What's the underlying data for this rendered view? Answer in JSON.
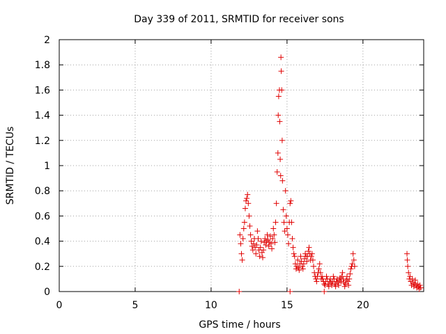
{
  "chart_data": {
    "type": "scatter",
    "title": "Day 339 of 2011, SRMTID for receiver sons",
    "xlabel": "GPS time / hours",
    "ylabel": "SRMTID / TECUs",
    "xlim": [
      0,
      24
    ],
    "ylim": [
      0,
      2
    ],
    "xticks": [
      0,
      5,
      10,
      15,
      20
    ],
    "yticks": [
      0,
      0.2,
      0.4,
      0.6,
      0.8,
      1,
      1.2,
      1.4,
      1.6,
      1.8,
      2
    ],
    "ytick_labels": [
      "0",
      "0.2",
      "0.4",
      "0.6",
      "0.8",
      "1",
      "1.2",
      "1.4",
      "1.6",
      "1.8",
      "2"
    ],
    "grid": true,
    "marker": "+",
    "color": "#e00000",
    "series": [
      {
        "name": "SRMTID",
        "points": [
          [
            11.85,
            0.0
          ],
          [
            15.2,
            0.0
          ],
          [
            17.45,
            0.0
          ],
          [
            11.9,
            0.45
          ],
          [
            11.95,
            0.38
          ],
          [
            12.0,
            0.3
          ],
          [
            12.05,
            0.25
          ],
          [
            12.1,
            0.42
          ],
          [
            12.15,
            0.5
          ],
          [
            12.2,
            0.55
          ],
          [
            12.25,
            0.66
          ],
          [
            12.3,
            0.72
          ],
          [
            12.35,
            0.74
          ],
          [
            12.4,
            0.77
          ],
          [
            12.45,
            0.7
          ],
          [
            12.5,
            0.6
          ],
          [
            12.55,
            0.52
          ],
          [
            12.6,
            0.45
          ],
          [
            12.65,
            0.4
          ],
          [
            12.7,
            0.36
          ],
          [
            12.75,
            0.33
          ],
          [
            12.8,
            0.38
          ],
          [
            12.85,
            0.42
          ],
          [
            12.9,
            0.35
          ],
          [
            12.95,
            0.3
          ],
          [
            13.0,
            0.37
          ],
          [
            13.05,
            0.48
          ],
          [
            13.1,
            0.42
          ],
          [
            13.15,
            0.33
          ],
          [
            13.2,
            0.28
          ],
          [
            13.25,
            0.35
          ],
          [
            13.3,
            0.4
          ],
          [
            13.35,
            0.31
          ],
          [
            13.4,
            0.27
          ],
          [
            13.45,
            0.33
          ],
          [
            13.5,
            0.39
          ],
          [
            13.55,
            0.42
          ],
          [
            13.6,
            0.37
          ],
          [
            13.65,
            0.4
          ],
          [
            13.7,
            0.45
          ],
          [
            13.75,
            0.41
          ],
          [
            13.8,
            0.36
          ],
          [
            13.85,
            0.39
          ],
          [
            13.9,
            0.44
          ],
          [
            13.95,
            0.38
          ],
          [
            14.0,
            0.34
          ],
          [
            14.05,
            0.42
          ],
          [
            14.1,
            0.5
          ],
          [
            14.15,
            0.45
          ],
          [
            14.2,
            0.39
          ],
          [
            14.25,
            0.55
          ],
          [
            14.3,
            0.7
          ],
          [
            14.35,
            0.95
          ],
          [
            14.4,
            1.1
          ],
          [
            14.42,
            1.4
          ],
          [
            14.45,
            1.55
          ],
          [
            14.5,
            1.6
          ],
          [
            14.52,
            1.35
          ],
          [
            14.55,
            1.05
          ],
          [
            14.58,
            0.92
          ],
          [
            14.6,
            1.86
          ],
          [
            14.62,
            1.75
          ],
          [
            14.65,
            1.6
          ],
          [
            14.68,
            1.2
          ],
          [
            14.7,
            0.88
          ],
          [
            14.75,
            0.65
          ],
          [
            14.8,
            0.55
          ],
          [
            14.85,
            0.48
          ],
          [
            14.9,
            0.8
          ],
          [
            14.95,
            0.6
          ],
          [
            15.0,
            0.5
          ],
          [
            15.05,
            0.45
          ],
          [
            15.1,
            0.38
          ],
          [
            15.15,
            0.55
          ],
          [
            15.2,
            0.7
          ],
          [
            15.25,
            0.72
          ],
          [
            15.3,
            0.55
          ],
          [
            15.35,
            0.42
          ],
          [
            15.4,
            0.35
          ],
          [
            15.45,
            0.3
          ],
          [
            15.5,
            0.28
          ],
          [
            15.55,
            0.22
          ],
          [
            15.6,
            0.18
          ],
          [
            15.65,
            0.2
          ],
          [
            15.7,
            0.25
          ],
          [
            15.75,
            0.19
          ],
          [
            15.8,
            0.17
          ],
          [
            15.85,
            0.22
          ],
          [
            15.9,
            0.28
          ],
          [
            15.95,
            0.24
          ],
          [
            16.0,
            0.2
          ],
          [
            16.05,
            0.18
          ],
          [
            16.1,
            0.22
          ],
          [
            16.15,
            0.26
          ],
          [
            16.2,
            0.3
          ],
          [
            16.25,
            0.28
          ],
          [
            16.3,
            0.24
          ],
          [
            16.35,
            0.28
          ],
          [
            16.4,
            0.32
          ],
          [
            16.45,
            0.35
          ],
          [
            16.5,
            0.3
          ],
          [
            16.55,
            0.25
          ],
          [
            16.6,
            0.28
          ],
          [
            16.65,
            0.3
          ],
          [
            16.7,
            0.25
          ],
          [
            16.75,
            0.2
          ],
          [
            16.8,
            0.15
          ],
          [
            16.85,
            0.12
          ],
          [
            16.9,
            0.1
          ],
          [
            16.95,
            0.08
          ],
          [
            17.0,
            0.12
          ],
          [
            17.05,
            0.15
          ],
          [
            17.1,
            0.18
          ],
          [
            17.15,
            0.22
          ],
          [
            17.2,
            0.15
          ],
          [
            17.25,
            0.1
          ],
          [
            17.3,
            0.12
          ],
          [
            17.35,
            0.1
          ],
          [
            17.4,
            0.08
          ],
          [
            17.45,
            0.06
          ],
          [
            17.5,
            0.05
          ],
          [
            17.55,
            0.08
          ],
          [
            17.6,
            0.12
          ],
          [
            17.65,
            0.1
          ],
          [
            17.7,
            0.06
          ],
          [
            17.75,
            0.04
          ],
          [
            17.8,
            0.08
          ],
          [
            17.85,
            0.1
          ],
          [
            17.9,
            0.07
          ],
          [
            17.95,
            0.05
          ],
          [
            18.0,
            0.08
          ],
          [
            18.05,
            0.12
          ],
          [
            18.1,
            0.1
          ],
          [
            18.15,
            0.06
          ],
          [
            18.2,
            0.04
          ],
          [
            18.25,
            0.08
          ],
          [
            18.3,
            0.1
          ],
          [
            18.35,
            0.07
          ],
          [
            18.4,
            0.05
          ],
          [
            18.45,
            0.09
          ],
          [
            18.5,
            0.11
          ],
          [
            18.55,
            0.08
          ],
          [
            18.6,
            0.12
          ],
          [
            18.65,
            0.15
          ],
          [
            18.7,
            0.1
          ],
          [
            18.75,
            0.07
          ],
          [
            18.8,
            0.04
          ],
          [
            18.85,
            0.06
          ],
          [
            18.9,
            0.09
          ],
          [
            18.95,
            0.12
          ],
          [
            19.0,
            0.08
          ],
          [
            19.05,
            0.05
          ],
          [
            19.1,
            0.1
          ],
          [
            19.15,
            0.14
          ],
          [
            19.2,
            0.18
          ],
          [
            19.25,
            0.2
          ],
          [
            19.3,
            0.22
          ],
          [
            19.35,
            0.3
          ],
          [
            19.4,
            0.25
          ],
          [
            19.45,
            0.2
          ],
          [
            22.9,
            0.3
          ],
          [
            22.92,
            0.25
          ],
          [
            22.95,
            0.2
          ],
          [
            23.0,
            0.15
          ],
          [
            23.05,
            0.1
          ],
          [
            23.1,
            0.12
          ],
          [
            23.15,
            0.08
          ],
          [
            23.2,
            0.05
          ],
          [
            23.25,
            0.1
          ],
          [
            23.3,
            0.07
          ],
          [
            23.35,
            0.04
          ],
          [
            23.4,
            0.06
          ],
          [
            23.45,
            0.09
          ],
          [
            23.5,
            0.05
          ],
          [
            23.55,
            0.03
          ],
          [
            23.6,
            0.06
          ],
          [
            23.65,
            0.04
          ],
          [
            23.7,
            0.02
          ],
          [
            23.75,
            0.05
          ],
          [
            23.8,
            0.03
          ]
        ]
      }
    ]
  }
}
